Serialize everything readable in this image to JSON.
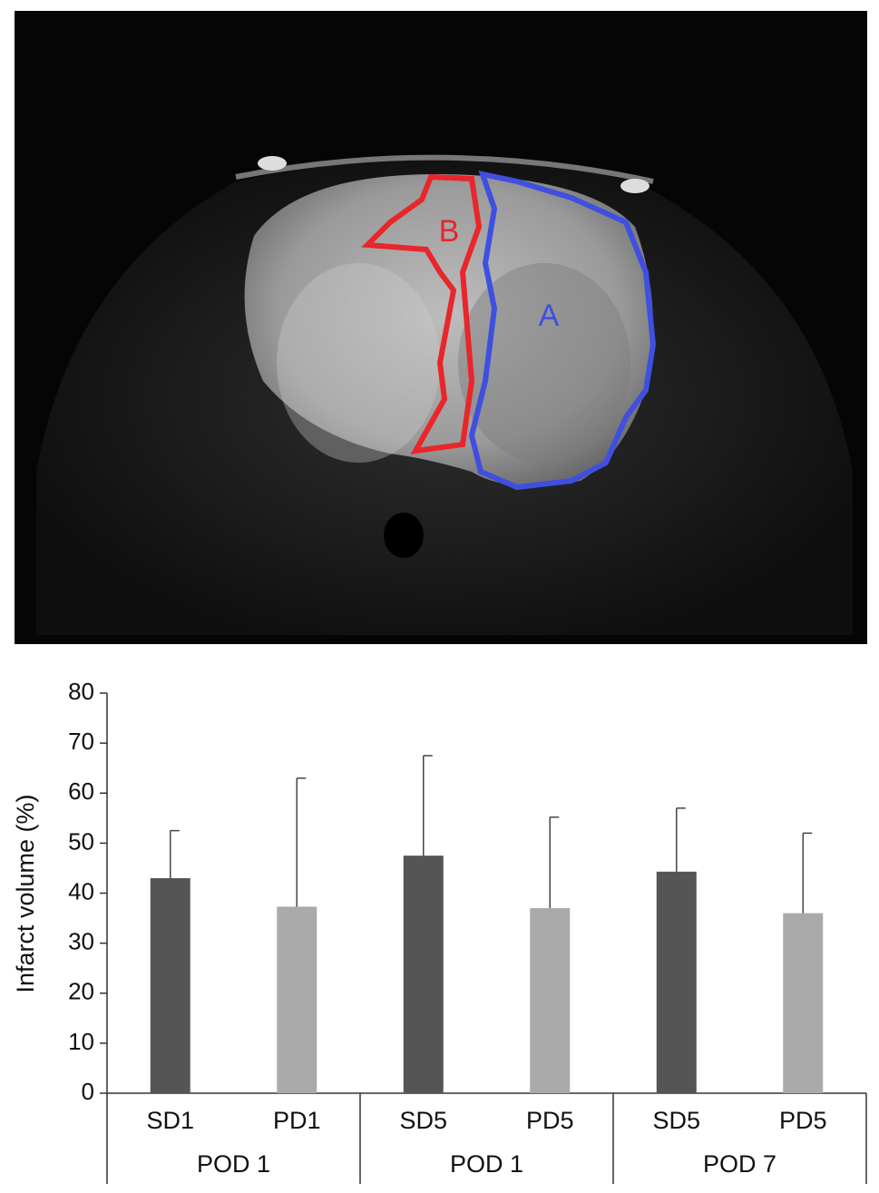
{
  "image": {
    "region_labels": [
      "A",
      "B"
    ]
  },
  "chart_data": {
    "type": "bar",
    "y_label": "Infarct volume (%)",
    "categories": [
      "SD1",
      "PD1",
      "SD5",
      "PD5",
      "SD5",
      "PD5"
    ],
    "groups": [
      "POD 1",
      "POD 1",
      "POD 7"
    ],
    "values": [
      43,
      37.3,
      47.5,
      37,
      44.3,
      36
    ],
    "errors": [
      9.5,
      25.7,
      20,
      18.2,
      12.7,
      16
    ],
    "colors": [
      "#555555",
      "#aaaaaa",
      "#555555",
      "#aaaaaa",
      "#555555",
      "#aaaaaa"
    ],
    "ylim": [
      0,
      80
    ],
    "yticks": [
      0,
      10,
      20,
      30,
      40,
      50,
      60,
      70,
      80
    ],
    "grid": false
  }
}
